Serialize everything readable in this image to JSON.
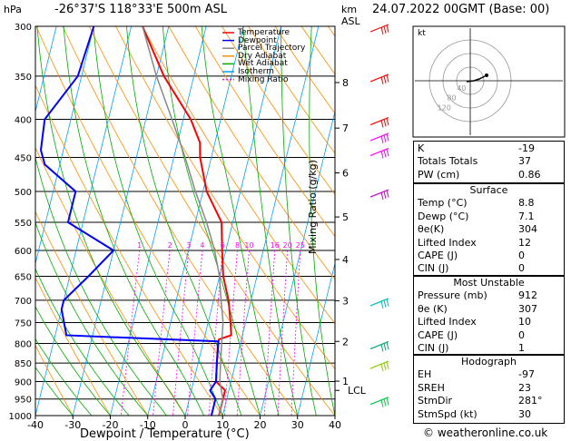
{
  "header": {
    "hpa_label": "hPa",
    "location": "-26°37'S  118°33'E  500m  ASL",
    "km_label": "km",
    "asl_label": "ASL",
    "datetime": "24.07.2022  00GMT  (Base: 00)"
  },
  "legend": {
    "items": [
      {
        "label": "Temperature",
        "color": "#ff0000",
        "dash": ""
      },
      {
        "label": "Dewpoint",
        "color": "#0000ff",
        "dash": ""
      },
      {
        "label": "Parcel Trajectory",
        "color": "#888888",
        "dash": ""
      },
      {
        "label": "Dry Adiabat",
        "color": "#ff8c00",
        "dash": ""
      },
      {
        "label": "Wet Adiabat",
        "color": "#00aa00",
        "dash": ""
      },
      {
        "label": "Isotherm",
        "color": "#00a0ff",
        "dash": ""
      },
      {
        "label": "Mixing Ratio",
        "color": "#ff00ff",
        "dash": "2,2"
      }
    ]
  },
  "chart_data": {
    "type": "line",
    "xlabel": "Dewpoint / Temperature (°C)",
    "ylabel": "hPa",
    "xlim": [
      -40,
      40
    ],
    "ylim": [
      1000,
      300
    ],
    "x_ticks": [
      -40,
      -30,
      -20,
      -10,
      0,
      10,
      20,
      30,
      40
    ],
    "pressure_ticks": [
      300,
      350,
      400,
      450,
      500,
      550,
      600,
      650,
      700,
      750,
      800,
      850,
      900,
      950,
      1000
    ],
    "altitude_axis_label": "Mixing Ratio (g/kg)",
    "altitude_ticks": [
      {
        "label": "8",
        "p": 357
      },
      {
        "label": "7",
        "p": 411
      },
      {
        "label": "6",
        "p": 472
      },
      {
        "label": "5",
        "p": 541
      },
      {
        "label": "4",
        "p": 617
      },
      {
        "label": "3",
        "p": 701
      },
      {
        "label": "2",
        "p": 795
      },
      {
        "label": "1",
        "p": 899
      }
    ],
    "lcl_label": "LCL",
    "lcl_p": 925,
    "mixing_ratio_labels": [
      "1",
      "2",
      "3",
      "4",
      "6",
      "8",
      "10",
      "16",
      "20",
      "25"
    ],
    "series": [
      {
        "name": "Temperature",
        "color": "#ff0000",
        "points": [
          [
            300,
            -37
          ],
          [
            350,
            -28
          ],
          [
            400,
            -18
          ],
          [
            430,
            -14
          ],
          [
            450,
            -13
          ],
          [
            500,
            -9
          ],
          [
            550,
            -3
          ],
          [
            600,
            -1
          ],
          [
            650,
            1
          ],
          [
            700,
            4
          ],
          [
            750,
            6
          ],
          [
            780,
            7
          ],
          [
            790,
            4
          ],
          [
            800,
            4
          ],
          [
            850,
            5
          ],
          [
            900,
            6
          ],
          [
            925,
            9
          ],
          [
            950,
            9
          ],
          [
            975,
            9
          ],
          [
            1000,
            9
          ]
        ]
      },
      {
        "name": "Dewpoint",
        "color": "#0000ff",
        "points": [
          [
            300,
            -50
          ],
          [
            350,
            -51
          ],
          [
            400,
            -57
          ],
          [
            440,
            -56
          ],
          [
            460,
            -54
          ],
          [
            500,
            -44
          ],
          [
            550,
            -44
          ],
          [
            600,
            -30
          ],
          [
            650,
            -35
          ],
          [
            700,
            -40
          ],
          [
            720,
            -40
          ],
          [
            780,
            -37
          ],
          [
            795,
            4
          ],
          [
            850,
            5
          ],
          [
            900,
            6
          ],
          [
            925,
            5
          ],
          [
            950,
            7
          ],
          [
            975,
            7
          ],
          [
            1000,
            7
          ]
        ]
      },
      {
        "name": "Parcel Trajectory",
        "color": "#888888",
        "points": [
          [
            300,
            -37
          ],
          [
            350,
            -30
          ],
          [
            400,
            -23
          ],
          [
            450,
            -17
          ],
          [
            500,
            -12
          ],
          [
            550,
            -7
          ],
          [
            600,
            -3
          ],
          [
            650,
            0
          ],
          [
            700,
            2
          ],
          [
            750,
            4
          ],
          [
            800,
            5
          ],
          [
            850,
            6
          ],
          [
            900,
            7
          ],
          [
            925,
            8
          ],
          [
            950,
            9
          ],
          [
            1000,
            9
          ]
        ]
      }
    ]
  },
  "hodograph": {
    "unit_label": "kt",
    "ring_labels": [
      "40",
      "80",
      "120"
    ]
  },
  "indices": {
    "rows": [
      {
        "label": "K",
        "value": "-19"
      },
      {
        "label": "Totals Totals",
        "value": "37"
      },
      {
        "label": "PW (cm)",
        "value": "0.86"
      }
    ]
  },
  "surface": {
    "title": "Surface",
    "rows": [
      {
        "label": "Temp (°C)",
        "value": "8.8"
      },
      {
        "label": "Dewp (°C)",
        "value": "7.1"
      },
      {
        "label": "θe(K)",
        "value": "304"
      },
      {
        "label": "Lifted Index",
        "value": "12"
      },
      {
        "label": "CAPE (J)",
        "value": "0"
      },
      {
        "label": "CIN (J)",
        "value": "0"
      }
    ]
  },
  "most_unstable": {
    "title": "Most Unstable",
    "rows": [
      {
        "label": "Pressure (mb)",
        "value": "912"
      },
      {
        "label": "θe (K)",
        "value": "307"
      },
      {
        "label": "Lifted Index",
        "value": "10"
      },
      {
        "label": "CAPE (J)",
        "value": "0"
      },
      {
        "label": "CIN (J)",
        "value": "1"
      }
    ]
  },
  "hodo_stats": {
    "title": "Hodograph",
    "rows": [
      {
        "label": "EH",
        "value": "-97"
      },
      {
        "label": "SREH",
        "value": "23"
      },
      {
        "label": "StmDir",
        "value": "281°"
      },
      {
        "label": "StmSpd (kt)",
        "value": "30"
      }
    ]
  },
  "wind_barbs": [
    {
      "p": 300,
      "color": "#ff0000"
    },
    {
      "p": 350,
      "color": "#ff0000"
    },
    {
      "p": 400,
      "color": "#ff0000"
    },
    {
      "p": 420,
      "color": "#ff00ff"
    },
    {
      "p": 440,
      "color": "#ff00ff"
    },
    {
      "p": 500,
      "color": "#cc00cc"
    },
    {
      "p": 700,
      "color": "#00bbbb"
    },
    {
      "p": 800,
      "color": "#00aa66"
    },
    {
      "p": 850,
      "color": "#88cc00"
    },
    {
      "p": 950,
      "color": "#00cc44"
    }
  ],
  "footer": {
    "copyright": "© weatheronline.co.uk"
  }
}
